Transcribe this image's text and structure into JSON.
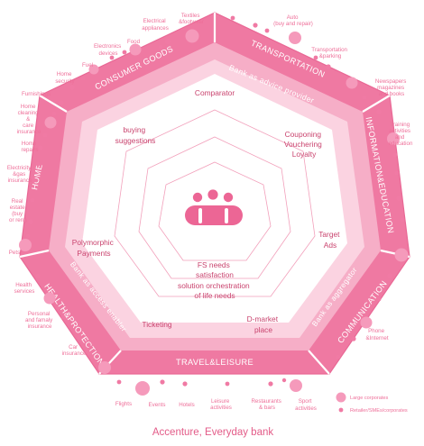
{
  "colors": {
    "outer_band": "#ef79a2",
    "middle_band": "#f6aec7",
    "inner_band": "#fbd3e1",
    "core": "#ffffff",
    "lines": "#f2a0bb",
    "large_dot": "#f59abb",
    "small_dot": "#f07aa4",
    "text": "#ee6f99",
    "inner_text": "#c9436e"
  },
  "sectors": {
    "transportation": "TRANSPORTATION",
    "information_education": "INFORMATION&EDUCATION",
    "communication": "COMMUNICATION",
    "travel_leisure": "TRAVEL&LEISURE",
    "health_protection": "HEALTH&PROTECTION",
    "home": "HOME",
    "consumer_goods": "CONSUMER GOODS"
  },
  "roles": {
    "advice_provider": "Bank as advice provider",
    "aggregator": "Bank as aggregator",
    "access_enabler": "Bank as access enabler"
  },
  "services": {
    "comparator": "Comparator",
    "couponing": [
      "Couponing",
      "Vouchering",
      "Loyalty"
    ],
    "buying": [
      "buying",
      "suggestions"
    ],
    "target_ads": [
      "Target",
      "Ads"
    ],
    "polymorphic": [
      "Polymorphic",
      "Payments"
    ],
    "ticketing": "Ticketing",
    "dmarket": [
      "D-market",
      "place"
    ],
    "fs_needs": [
      "FS needs",
      "satisfaction"
    ],
    "solution": [
      "solution orchestration",
      "of life needs"
    ]
  },
  "external": {
    "textiles": [
      "Textiles",
      "&footwear"
    ],
    "electrical": [
      "Electrical",
      "appliances"
    ],
    "food": [
      "Food"
    ],
    "electronics": [
      "Electronics",
      "devices"
    ],
    "fuel": [
      "Fuel"
    ],
    "home_security": [
      "Home",
      "security"
    ],
    "furnishings": [
      "Furnishings"
    ],
    "home_cleaning": [
      "Home",
      "cleaning",
      "&",
      "care",
      "insurance"
    ],
    "home_repairs": [
      "Home",
      "repairs"
    ],
    "electricity": [
      "Electricity",
      "&gas",
      "insurance"
    ],
    "real_estate": [
      "Real",
      "estate",
      "(buy",
      "or rent)"
    ],
    "pets": [
      "Pets"
    ],
    "health_services": [
      "Health",
      "services"
    ],
    "personal_insurance": [
      "Personal",
      "and famaly",
      "insurance"
    ],
    "car_insurance": [
      "Car",
      "insurance"
    ],
    "flights": [
      "Flights"
    ],
    "events": [
      "Events"
    ],
    "hotels": [
      "Hotels"
    ],
    "leisure": [
      "Leisure",
      "activities"
    ],
    "restaurants": [
      "Restaurants",
      "& bars"
    ],
    "sport": [
      "Sport",
      "activities"
    ],
    "phone": [
      "Phone",
      "&Internet"
    ],
    "training": [
      "Training",
      "activities",
      "and",
      "education"
    ],
    "newspapers": [
      "Newspapers",
      "magazines",
      "and books"
    ],
    "transportation_parking": [
      "Transportation",
      "&parking"
    ],
    "auto": [
      "Auto",
      "(buy and repair)"
    ]
  },
  "legend": {
    "large": "Large corporates",
    "small": "Retailer/SMEs/corporates"
  },
  "caption": "Accenture, Everyday bank"
}
